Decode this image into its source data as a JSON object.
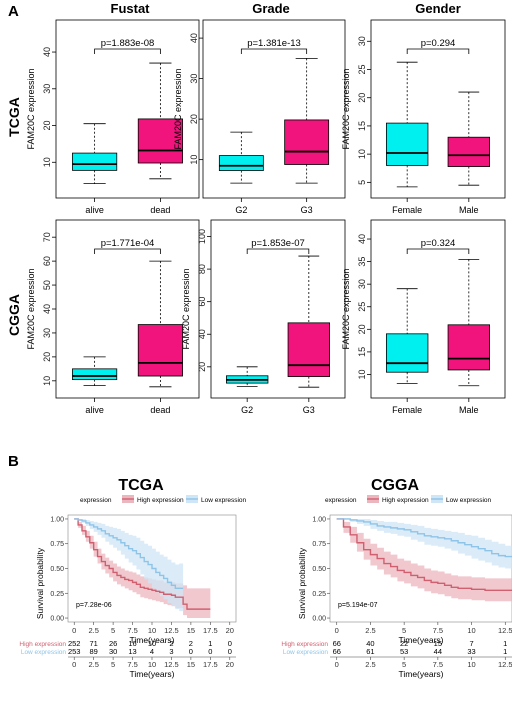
{
  "panel_a_label": "A",
  "panel_b_label": "B",
  "column_titles": [
    "Fustat",
    "Grade",
    "Gender"
  ],
  "row_titles": [
    "TCGA",
    "CGGA"
  ],
  "colors": {
    "high_box": "#F0147C",
    "low_box": "#00F0F0",
    "high_line": "#D06070",
    "low_line": "#8EC4E8",
    "high_band": "#EBB6BE",
    "low_band": "#CFE6F6"
  },
  "chart_data": [
    {
      "type": "box",
      "row": "TCGA",
      "column": "Fustat",
      "ylabel": "FAM20C expression",
      "categories": [
        "alive",
        "dead"
      ],
      "p_value": "p=1.883e-08",
      "ylim": [
        3,
        46
      ],
      "yticks": [
        10,
        20,
        30,
        40
      ],
      "boxes": [
        {
          "category": "alive",
          "min": 4.2,
          "q1": 7.8,
          "median": 9.5,
          "q3": 12.5,
          "max": 20.5
        },
        {
          "category": "dead",
          "min": 5.5,
          "q1": 9.8,
          "median": 13.2,
          "q3": 21.8,
          "max": 37
        }
      ]
    },
    {
      "type": "box",
      "row": "TCGA",
      "column": "Grade",
      "ylabel": "FAM20C expression",
      "categories": [
        "G2",
        "G3"
      ],
      "p_value": "p=1.381e-13",
      "ylim": [
        3,
        42
      ],
      "yticks": [
        10,
        20,
        30,
        40
      ],
      "boxes": [
        {
          "category": "G2",
          "min": 4.2,
          "q1": 7.3,
          "median": 8.5,
          "q3": 11,
          "max": 16.8
        },
        {
          "category": "G3",
          "min": 4.2,
          "q1": 8.8,
          "median": 12,
          "q3": 19.8,
          "max": 35
        }
      ]
    },
    {
      "type": "box",
      "row": "TCGA",
      "column": "Gender",
      "ylabel": "FAM20C expression",
      "categories": [
        "Female",
        "Male"
      ],
      "p_value": "p=0.294",
      "ylim": [
        4,
        32
      ],
      "yticks": [
        5,
        10,
        15,
        20,
        25,
        30
      ],
      "boxes": [
        {
          "category": "Female",
          "min": 4.2,
          "q1": 8,
          "median": 10.2,
          "q3": 15.5,
          "max": 26.3
        },
        {
          "category": "Male",
          "min": 4.5,
          "q1": 7.8,
          "median": 9.8,
          "q3": 13,
          "max": 21
        }
      ]
    },
    {
      "type": "box",
      "row": "CGGA",
      "column": "Fustat",
      "ylabel": "FAM20C expression",
      "categories": [
        "alive",
        "dead"
      ],
      "p_value": "p=1.771e-04",
      "ylim": [
        7,
        73
      ],
      "yticks": [
        10,
        20,
        30,
        40,
        50,
        60,
        70
      ],
      "boxes": [
        {
          "category": "alive",
          "min": 8,
          "q1": 10.5,
          "median": 12,
          "q3": 15,
          "max": 20
        },
        {
          "category": "dead",
          "min": 7.5,
          "q1": 12,
          "median": 17.5,
          "q3": 33.5,
          "max": 60
        }
      ]
    },
    {
      "type": "box",
      "row": "CGGA",
      "column": "Grade",
      "ylabel": "FAM20C expression",
      "categories": [
        "G2",
        "G3"
      ],
      "p_value": "p=1.853e-07",
      "ylim": [
        7,
        104
      ],
      "yticks": [
        20,
        40,
        60,
        80,
        100
      ],
      "boxes": [
        {
          "category": "G2",
          "min": 8,
          "q1": 10,
          "median": 12,
          "q3": 14.5,
          "max": 20
        },
        {
          "category": "G3",
          "min": 7.5,
          "q1": 14,
          "median": 21,
          "q3": 47,
          "max": 88
        }
      ]
    },
    {
      "type": "box",
      "row": "CGGA",
      "column": "Gender",
      "ylabel": "FAM20C expression",
      "categories": [
        "Female",
        "Male"
      ],
      "p_value": "p=0.324",
      "ylim": [
        7,
        42
      ],
      "yticks": [
        10,
        15,
        20,
        25,
        30,
        35,
        40
      ],
      "boxes": [
        {
          "category": "Female",
          "min": 8,
          "q1": 10.5,
          "median": 12.5,
          "q3": 19,
          "max": 29
        },
        {
          "category": "Male",
          "min": 7.5,
          "q1": 11,
          "median": 13.5,
          "q3": 21,
          "max": 35.5
        }
      ]
    },
    {
      "type": "line",
      "title": "TCGA",
      "ylabel": "Survival probability",
      "xlabel": "Time(years)",
      "p_value": "p=7.28e-06",
      "legend": {
        "title": "expression",
        "items": [
          "High expression",
          "Low expression"
        ]
      },
      "xlim": [
        -0.8,
        20.8
      ],
      "xticks": [
        0,
        2.5,
        5,
        7.5,
        10,
        12.5,
        15,
        17.5,
        20
      ],
      "xticklabels": [
        "0",
        "2.5",
        "5",
        "7.5",
        "10",
        "12.5",
        "15",
        "17.5",
        "20"
      ],
      "ylim": [
        -0.04,
        1.04
      ],
      "yticks": [
        0,
        0.25,
        0.5,
        0.75,
        1
      ],
      "yticklabels": [
        "0.00",
        "0.25",
        "0.50",
        "0.75",
        "1.00"
      ],
      "series": [
        {
          "name": "High expression",
          "x": [
            0,
            0.5,
            1,
            1.5,
            2,
            2.5,
            3,
            3.5,
            4,
            4.5,
            5,
            5.5,
            6,
            6.5,
            7,
            7.5,
            8,
            8.5,
            9,
            9.5,
            10,
            10.5,
            11,
            11.5,
            12,
            12.5,
            13,
            14,
            14.5,
            15,
            16,
            17,
            17.5
          ],
          "y": [
            1,
            0.94,
            0.88,
            0.82,
            0.76,
            0.69,
            0.62,
            0.57,
            0.53,
            0.5,
            0.46,
            0.43,
            0.41,
            0.39,
            0.38,
            0.36,
            0.34,
            0.31,
            0.3,
            0.29,
            0.28,
            0.27,
            0.26,
            0.24,
            0.24,
            0.23,
            0.21,
            0.14,
            0.09,
            0.09,
            0.09,
            0.09,
            0.09
          ],
          "lower": [
            1,
            0.91,
            0.84,
            0.77,
            0.7,
            0.62,
            0.55,
            0.49,
            0.45,
            0.41,
            0.37,
            0.34,
            0.32,
            0.3,
            0.28,
            0.26,
            0.24,
            0.21,
            0.2,
            0.19,
            0.18,
            0.17,
            0.16,
            0.14,
            0.13,
            0.12,
            0.1,
            0.03,
            0,
            0,
            0,
            0,
            0
          ],
          "upper": [
            1,
            0.97,
            0.93,
            0.88,
            0.83,
            0.77,
            0.7,
            0.65,
            0.61,
            0.58,
            0.55,
            0.52,
            0.5,
            0.48,
            0.47,
            0.46,
            0.44,
            0.42,
            0.41,
            0.4,
            0.39,
            0.38,
            0.38,
            0.36,
            0.37,
            0.36,
            0.35,
            0.33,
            0.3,
            0.3,
            0.3,
            0.3,
            0.3
          ]
        },
        {
          "name": "Low expression",
          "x": [
            0,
            0.5,
            1,
            1.5,
            2,
            2.5,
            3,
            3.5,
            4,
            4.5,
            5,
            5.5,
            6,
            6.5,
            7,
            7.5,
            8,
            8.5,
            9,
            9.5,
            10,
            10.5,
            11,
            11.5,
            12,
            12.5,
            13,
            13.5,
            14
          ],
          "y": [
            1,
            0.99,
            0.98,
            0.96,
            0.94,
            0.92,
            0.9,
            0.88,
            0.85,
            0.83,
            0.81,
            0.79,
            0.76,
            0.73,
            0.7,
            0.68,
            0.65,
            0.61,
            0.57,
            0.54,
            0.5,
            0.46,
            0.43,
            0.4,
            0.36,
            0.33,
            0.3,
            0.3,
            0.3
          ],
          "lower": [
            1,
            0.98,
            0.96,
            0.93,
            0.9,
            0.87,
            0.84,
            0.81,
            0.77,
            0.74,
            0.71,
            0.68,
            0.64,
            0.6,
            0.56,
            0.53,
            0.49,
            0.44,
            0.39,
            0.35,
            0.3,
            0.26,
            0.22,
            0.19,
            0.15,
            0.12,
            0.09,
            0.07,
            0.05
          ],
          "upper": [
            1,
            1,
            1,
            0.99,
            0.98,
            0.97,
            0.96,
            0.95,
            0.93,
            0.92,
            0.91,
            0.9,
            0.88,
            0.86,
            0.84,
            0.83,
            0.81,
            0.78,
            0.75,
            0.73,
            0.7,
            0.67,
            0.64,
            0.62,
            0.59,
            0.56,
            0.54,
            0.55,
            0.6
          ]
        }
      ],
      "risk_table": {
        "rows": [
          {
            "name": "High expression",
            "values": [
              "252",
              "71",
              "26",
              "16",
              "10",
              "2",
              "2",
              "1",
              "0"
            ]
          },
          {
            "name": "Low expression",
            "values": [
              "253",
              "89",
              "30",
              "13",
              "4",
              "3",
              "0",
              "0",
              "0"
            ]
          }
        ],
        "x": [
          0,
          2.5,
          5,
          7.5,
          10,
          12.5,
          15,
          17.5,
          20
        ]
      }
    },
    {
      "type": "line",
      "title": "CGGA",
      "ylabel": "Survival probability",
      "xlabel": "Time(years)",
      "p_value": "p=5.194e-07",
      "legend": {
        "title": "expression",
        "items": [
          "High expression",
          "Low expression"
        ]
      },
      "xlim": [
        -0.5,
        13.0
      ],
      "xticks": [
        0,
        2.5,
        5,
        7.5,
        10,
        12.5
      ],
      "xticklabels": [
        "0",
        "2.5",
        "5",
        "7.5",
        "10",
        "12.5"
      ],
      "ylim": [
        -0.04,
        1.04
      ],
      "yticks": [
        0,
        0.25,
        0.5,
        0.75,
        1
      ],
      "yticklabels": [
        "0.00",
        "0.25",
        "0.50",
        "0.75",
        "1.00"
      ],
      "series": [
        {
          "name": "High expression",
          "x": [
            0,
            0.5,
            1,
            1.5,
            2,
            2.5,
            3,
            3.5,
            4,
            4.5,
            5,
            5.5,
            6,
            6.5,
            7,
            7.5,
            8,
            8.5,
            9,
            9.5,
            10,
            10.5,
            11,
            11.5,
            12,
            12.5,
            13
          ],
          "y": [
            1,
            0.92,
            0.84,
            0.76,
            0.69,
            0.64,
            0.6,
            0.55,
            0.52,
            0.48,
            0.46,
            0.43,
            0.41,
            0.38,
            0.36,
            0.35,
            0.33,
            0.31,
            0.3,
            0.3,
            0.29,
            0.29,
            0.28,
            0.28,
            0.28,
            0.28,
            0.28
          ],
          "lower": [
            1,
            0.86,
            0.76,
            0.67,
            0.59,
            0.53,
            0.49,
            0.44,
            0.41,
            0.37,
            0.35,
            0.32,
            0.3,
            0.27,
            0.25,
            0.24,
            0.22,
            0.2,
            0.19,
            0.19,
            0.18,
            0.18,
            0.17,
            0.17,
            0.17,
            0.17,
            0.17
          ],
          "upper": [
            1,
            0.97,
            0.92,
            0.86,
            0.8,
            0.75,
            0.71,
            0.67,
            0.64,
            0.6,
            0.58,
            0.55,
            0.53,
            0.5,
            0.48,
            0.47,
            0.45,
            0.43,
            0.42,
            0.42,
            0.41,
            0.41,
            0.4,
            0.4,
            0.4,
            0.4,
            0.4
          ]
        },
        {
          "name": "Low expression",
          "x": [
            0,
            0.5,
            1,
            1.5,
            2,
            2.5,
            3,
            3.5,
            4,
            4.5,
            5,
            5.5,
            6,
            6.5,
            7,
            7.5,
            8,
            8.5,
            9,
            9.5,
            10,
            10.5,
            11,
            11.5,
            12,
            12.5,
            13
          ],
          "y": [
            1,
            1,
            0.99,
            0.98,
            0.97,
            0.95,
            0.93,
            0.92,
            0.91,
            0.9,
            0.89,
            0.87,
            0.85,
            0.83,
            0.82,
            0.81,
            0.8,
            0.78,
            0.76,
            0.74,
            0.72,
            0.7,
            0.68,
            0.65,
            0.63,
            0.62,
            0.62
          ],
          "lower": [
            1,
            1,
            0.97,
            0.95,
            0.93,
            0.9,
            0.88,
            0.86,
            0.85,
            0.83,
            0.82,
            0.79,
            0.77,
            0.74,
            0.73,
            0.72,
            0.7,
            0.68,
            0.65,
            0.63,
            0.6,
            0.58,
            0.56,
            0.53,
            0.51,
            0.5,
            0.5
          ],
          "upper": [
            1,
            1,
            1,
            1,
            1,
            0.99,
            0.98,
            0.97,
            0.97,
            0.96,
            0.95,
            0.94,
            0.93,
            0.91,
            0.9,
            0.89,
            0.88,
            0.87,
            0.86,
            0.84,
            0.83,
            0.81,
            0.79,
            0.77,
            0.75,
            0.73,
            0.72
          ]
        }
      ],
      "risk_table": {
        "rows": [
          {
            "name": "High expression",
            "values": [
              "66",
              "40",
              "22",
              "15",
              "7",
              "1"
            ]
          },
          {
            "name": "Low expression",
            "values": [
              "66",
              "61",
              "53",
              "44",
              "33",
              "1"
            ]
          }
        ],
        "x": [
          0,
          2.5,
          5,
          7.5,
          10,
          12.5
        ]
      }
    }
  ]
}
